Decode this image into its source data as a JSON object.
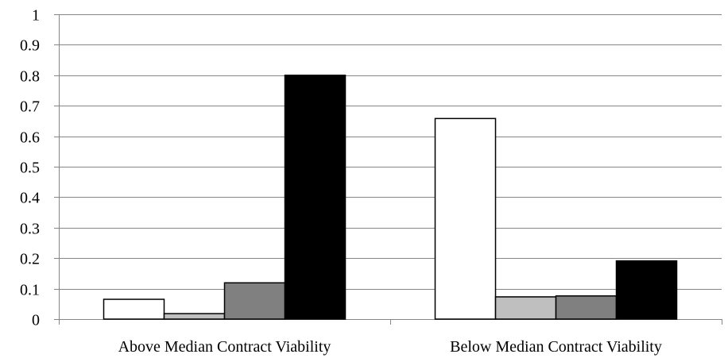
{
  "chart_data": {
    "type": "bar",
    "title": "",
    "xlabel": "",
    "ylabel": "",
    "categories": [
      "Above Median Contract Viability",
      "Below Median Contract Viability"
    ],
    "series": [
      {
        "values": [
          0.065,
          0.658
        ],
        "color": "#ffffff"
      },
      {
        "values": [
          0.018,
          0.073
        ],
        "color": "#bfbfbf"
      },
      {
        "values": [
          0.119,
          0.076
        ],
        "color": "#808080"
      },
      {
        "values": [
          0.8,
          0.191
        ],
        "color": "#000000"
      }
    ],
    "ylim": [
      0,
      1
    ],
    "yticks": [
      0,
      0.1,
      0.2,
      0.3,
      0.4,
      0.5,
      0.6,
      0.7,
      0.8,
      0.9,
      1
    ],
    "ytick_labels": [
      "0",
      "0.1",
      "0.2",
      "0.3",
      "0.4",
      "0.5",
      "0.6",
      "0.7",
      "0.8",
      "0.9",
      "1"
    ],
    "grid": true,
    "legend": "none",
    "bar_border_color": "#000000",
    "gridline_color": "#868686"
  }
}
